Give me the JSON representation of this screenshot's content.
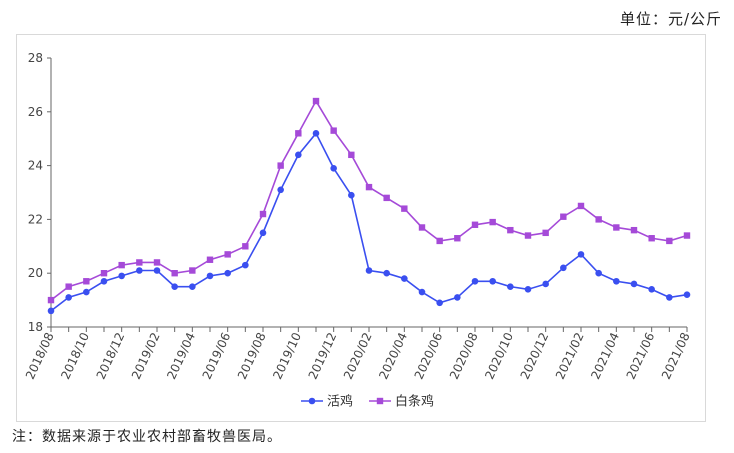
{
  "unit_label": "单位：元/公斤",
  "note": "注：数据来源于农业农村部畜牧兽医局。",
  "chart_data": {
    "type": "line",
    "title": "",
    "xlabel": "",
    "ylabel": "",
    "ylim": [
      18,
      28
    ],
    "yticks": [
      18,
      20,
      22,
      24,
      26,
      28
    ],
    "grid": false,
    "legend_position": "bottom",
    "x": [
      "2018/08",
      "2018/09",
      "2018/10",
      "2018/11",
      "2018/12",
      "2019/01",
      "2019/02",
      "2019/03",
      "2019/04",
      "2019/05",
      "2019/06",
      "2019/07",
      "2019/08",
      "2019/09",
      "2019/10",
      "2019/11",
      "2019/12",
      "2020/01",
      "2020/02",
      "2020/03",
      "2020/04",
      "2020/05",
      "2020/06",
      "2020/07",
      "2020/08",
      "2020/09",
      "2020/10",
      "2020/11",
      "2020/12",
      "2021/01",
      "2021/02",
      "2021/03",
      "2021/04",
      "2021/05",
      "2021/06",
      "2021/07",
      "2021/08"
    ],
    "xtick_labels": [
      "2018/08",
      "2018/10",
      "2018/12",
      "2019/02",
      "2019/04",
      "2019/06",
      "2019/08",
      "2019/10",
      "2019/12",
      "2020/02",
      "2020/04",
      "2020/06",
      "2020/08",
      "2020/10",
      "2020/12",
      "2021/02",
      "2021/04",
      "2021/06",
      "2021/08"
    ],
    "series": [
      {
        "name": "活鸡",
        "color": "#3a4ff0",
        "marker": "circle",
        "values": [
          18.6,
          19.1,
          19.3,
          19.7,
          19.9,
          20.1,
          20.1,
          19.5,
          19.5,
          19.9,
          20.0,
          20.3,
          21.5,
          23.1,
          24.4,
          25.2,
          23.9,
          22.9,
          20.1,
          20.0,
          19.8,
          19.3,
          18.9,
          19.1,
          19.7,
          19.7,
          19.5,
          19.4,
          19.6,
          20.2,
          20.7,
          20.0,
          19.7,
          19.6,
          19.4,
          19.1,
          19.2
        ]
      },
      {
        "name": "白条鸡",
        "color": "#a54ad8",
        "marker": "square",
        "values": [
          19.0,
          19.5,
          19.7,
          20.0,
          20.3,
          20.4,
          20.4,
          20.0,
          20.1,
          20.5,
          20.7,
          21.0,
          22.2,
          24.0,
          25.2,
          26.4,
          25.3,
          24.4,
          23.2,
          22.8,
          22.4,
          21.7,
          21.2,
          21.3,
          21.8,
          21.9,
          21.6,
          21.4,
          21.5,
          22.1,
          22.5,
          22.0,
          21.7,
          21.6,
          21.3,
          21.2,
          21.4
        ]
      }
    ]
  }
}
